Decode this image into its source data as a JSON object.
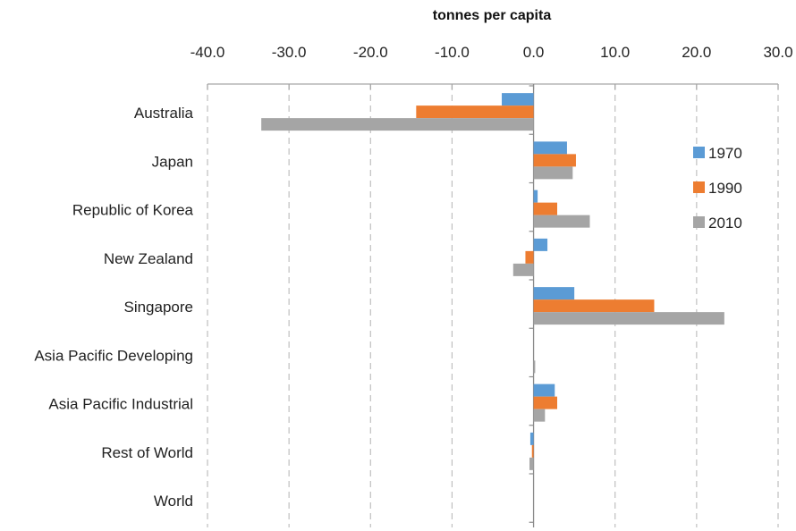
{
  "chart_data": {
    "type": "bar",
    "orientation": "horizontal",
    "title": "tonnes per capita",
    "categories": [
      "Australia",
      "Japan",
      "Republic of Korea",
      "New Zealand",
      "Singapore",
      "Asia Pacific Developing",
      "Asia Pacific Industrial",
      "Rest of World",
      "World"
    ],
    "series": [
      {
        "name": "1970",
        "color": "#5B9BD5",
        "values": [
          -3.9,
          4.1,
          0.5,
          1.7,
          5.0,
          0.0,
          2.6,
          -0.4,
          0.0
        ]
      },
      {
        "name": "1990",
        "color": "#ED7D31",
        "values": [
          -14.4,
          5.2,
          2.9,
          -1.0,
          14.8,
          0.0,
          2.9,
          -0.2,
          0.0
        ]
      },
      {
        "name": "2010",
        "color": "#A5A5A5",
        "values": [
          -33.4,
          4.8,
          6.9,
          -2.5,
          23.4,
          0.2,
          1.4,
          -0.5,
          0.0
        ]
      }
    ],
    "xlim": [
      -40,
      30
    ],
    "xticks": [
      "-40.0",
      "-30.0",
      "-20.0",
      "-10.0",
      "0.0",
      "10.0",
      "20.0",
      "30.0"
    ],
    "axis_position": "top",
    "gridlines": "vertical dashed",
    "legend_position": "right"
  }
}
